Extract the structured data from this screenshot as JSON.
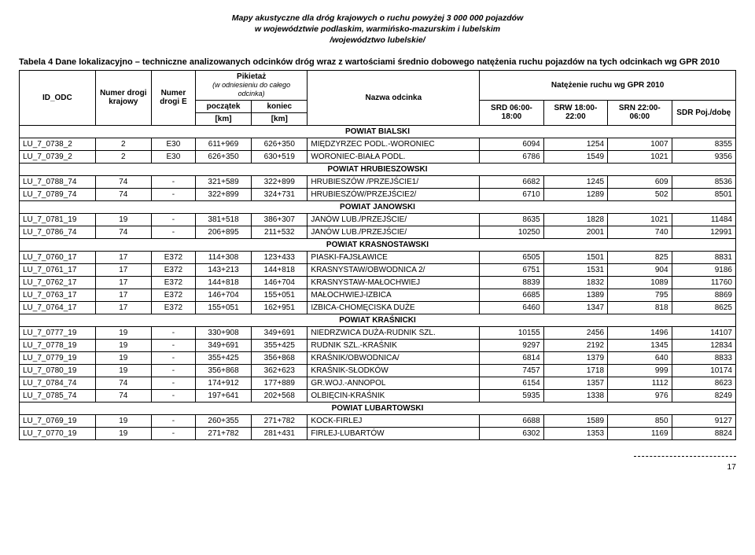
{
  "doc": {
    "title_line1": "Mapy akustyczne dla dróg krajowych o ruchu powyżej 3 000 000 pojazdów",
    "title_line2": "w województwie podlaskim, warmińsko-mazurskim i lubelskim",
    "title_line3": "/województwo lubelskie/",
    "caption": "Tabela 4 Dane lokalizacyjno – techniczne analizowanych odcinków dróg wraz z wartościami średnio dobowego natężenia ruchu pojazdów na tych odcinkach wg GPR 2010",
    "page_number": "17"
  },
  "head": {
    "id_odc": "ID_ODC",
    "numer_drogi_krajowy": "Numer drogi krajowy",
    "numer_drogi_e": "Numer drogi E",
    "pikietaz": "Pikietaż",
    "pikietaz_sub": "(w odniesieniu do całego odcinka)",
    "poczatek": "początek",
    "koniec": "koniec",
    "km": "[km]",
    "nazwa": "Nazwa odcinka",
    "natezenie": "Natężenie ruchu wg GPR 2010",
    "srd": "SRD 06:00-18:00",
    "srw": "SRW 18:00-22:00",
    "srn": "SRN 22:00-06:00",
    "sdr": "SDR Poj./dobę"
  },
  "sections": [
    {
      "name": "POWIAT BIALSKI",
      "rows": [
        {
          "id": "LU_7_0738_2",
          "k": "2",
          "e": "E30",
          "p": "611+969",
          "ko": "626+350",
          "nz": "MIĘDZYRZEC PODL.-WORONIEC",
          "srd": "6094",
          "srw": "1254",
          "srn": "1007",
          "sdr": "8355"
        },
        {
          "id": "LU_7_0739_2",
          "k": "2",
          "e": "E30",
          "p": "626+350",
          "ko": "630+519",
          "nz": "WORONIEC-BIAŁA PODL.",
          "srd": "6786",
          "srw": "1549",
          "srn": "1021",
          "sdr": "9356"
        }
      ]
    },
    {
      "name": "POWIAT HRUBIESZOWSKI",
      "rows": [
        {
          "id": "LU_7_0788_74",
          "k": "74",
          "e": "-",
          "p": "321+589",
          "ko": "322+899",
          "nz": "HRUBIESZÓW /PRZEJŚCIE1/",
          "srd": "6682",
          "srw": "1245",
          "srn": "609",
          "sdr": "8536"
        },
        {
          "id": "LU_7_0789_74",
          "k": "74",
          "e": "-",
          "p": "322+899",
          "ko": "324+731",
          "nz": "HRUBIESZÓW/PRZEJŚCIE2/",
          "srd": "6710",
          "srw": "1289",
          "srn": "502",
          "sdr": "8501"
        }
      ]
    },
    {
      "name": "POWIAT JANOWSKI",
      "rows": [
        {
          "id": "LU_7_0781_19",
          "k": "19",
          "e": "-",
          "p": "381+518",
          "ko": "386+307",
          "nz": "JANÓW LUB./PRZEJŚCIE/",
          "srd": "8635",
          "srw": "1828",
          "srn": "1021",
          "sdr": "11484"
        },
        {
          "id": "LU_7_0786_74",
          "k": "74",
          "e": "-",
          "p": "206+895",
          "ko": "211+532",
          "nz": "JANÓW LUB./PRZEJŚCIE/",
          "srd": "10250",
          "srw": "2001",
          "srn": "740",
          "sdr": "12991"
        }
      ]
    },
    {
      "name": "POWIAT KRASNOSTAWSKI",
      "rows": [
        {
          "id": "LU_7_0760_17",
          "k": "17",
          "e": "E372",
          "p": "114+308",
          "ko": "123+433",
          "nz": "PIASKI-FAJSŁAWICE",
          "srd": "6505",
          "srw": "1501",
          "srn": "825",
          "sdr": "8831"
        },
        {
          "id": "LU_7_0761_17",
          "k": "17",
          "e": "E372",
          "p": "143+213",
          "ko": "144+818",
          "nz": "KRASNYSTAW/OBWODNICA 2/",
          "srd": "6751",
          "srw": "1531",
          "srn": "904",
          "sdr": "9186"
        },
        {
          "id": "LU_7_0762_17",
          "k": "17",
          "e": "E372",
          "p": "144+818",
          "ko": "146+704",
          "nz": "KRASNYSTAW-MAŁOCHWIEJ",
          "srd": "8839",
          "srw": "1832",
          "srn": "1089",
          "sdr": "11760"
        },
        {
          "id": "LU_7_0763_17",
          "k": "17",
          "e": "E372",
          "p": "146+704",
          "ko": "155+051",
          "nz": "MAŁOCHWIEJ-IZBICA",
          "srd": "6685",
          "srw": "1389",
          "srn": "795",
          "sdr": "8869"
        },
        {
          "id": "LU_7_0764_17",
          "k": "17",
          "e": "E372",
          "p": "155+051",
          "ko": "162+951",
          "nz": "IZBICA-CHOMĘCISKA DUŻE",
          "srd": "6460",
          "srw": "1347",
          "srn": "818",
          "sdr": "8625"
        }
      ]
    },
    {
      "name": "POWIAT KRAŚNICKI",
      "rows": [
        {
          "id": "LU_7_0777_19",
          "k": "19",
          "e": "-",
          "p": "330+908",
          "ko": "349+691",
          "nz": "NIEDRZWICA DUŻA-RUDNIK SZL.",
          "srd": "10155",
          "srw": "2456",
          "srn": "1496",
          "sdr": "14107"
        },
        {
          "id": "LU_7_0778_19",
          "k": "19",
          "e": "-",
          "p": "349+691",
          "ko": "355+425",
          "nz": "RUDNIK SZL.-KRAŚNIK",
          "srd": "9297",
          "srw": "2192",
          "srn": "1345",
          "sdr": "12834"
        },
        {
          "id": "LU_7_0779_19",
          "k": "19",
          "e": "-",
          "p": "355+425",
          "ko": "356+868",
          "nz": "KRAŚNIK/OBWODNICA/",
          "srd": "6814",
          "srw": "1379",
          "srn": "640",
          "sdr": "8833"
        },
        {
          "id": "LU_7_0780_19",
          "k": "19",
          "e": "-",
          "p": "356+868",
          "ko": "362+623",
          "nz": "KRAŚNIK-SŁODKÓW",
          "srd": "7457",
          "srw": "1718",
          "srn": "999",
          "sdr": "10174"
        },
        {
          "id": "LU_7_0784_74",
          "k": "74",
          "e": "-",
          "p": "174+912",
          "ko": "177+889",
          "nz": "GR.WOJ.-ANNOPOL",
          "srd": "6154",
          "srw": "1357",
          "srn": "1112",
          "sdr": "8623"
        },
        {
          "id": "LU_7_0785_74",
          "k": "74",
          "e": "-",
          "p": "197+641",
          "ko": "202+568",
          "nz": "OLBIĘCIN-KRAŚNIK",
          "srd": "5935",
          "srw": "1338",
          "srn": "976",
          "sdr": "8249"
        }
      ]
    },
    {
      "name": "POWIAT LUBARTOWSKI",
      "rows": [
        {
          "id": "LU_7_0769_19",
          "k": "19",
          "e": "-",
          "p": "260+355",
          "ko": "271+782",
          "nz": "KOCK-FIRLEJ",
          "srd": "6688",
          "srw": "1589",
          "srn": "850",
          "sdr": "9127"
        },
        {
          "id": "LU_7_0770_19",
          "k": "19",
          "e": "-",
          "p": "271+782",
          "ko": "281+431",
          "nz": "FIRLEJ-LUBARTÓW",
          "srd": "6302",
          "srw": "1353",
          "srn": "1169",
          "sdr": "8824"
        }
      ]
    }
  ]
}
